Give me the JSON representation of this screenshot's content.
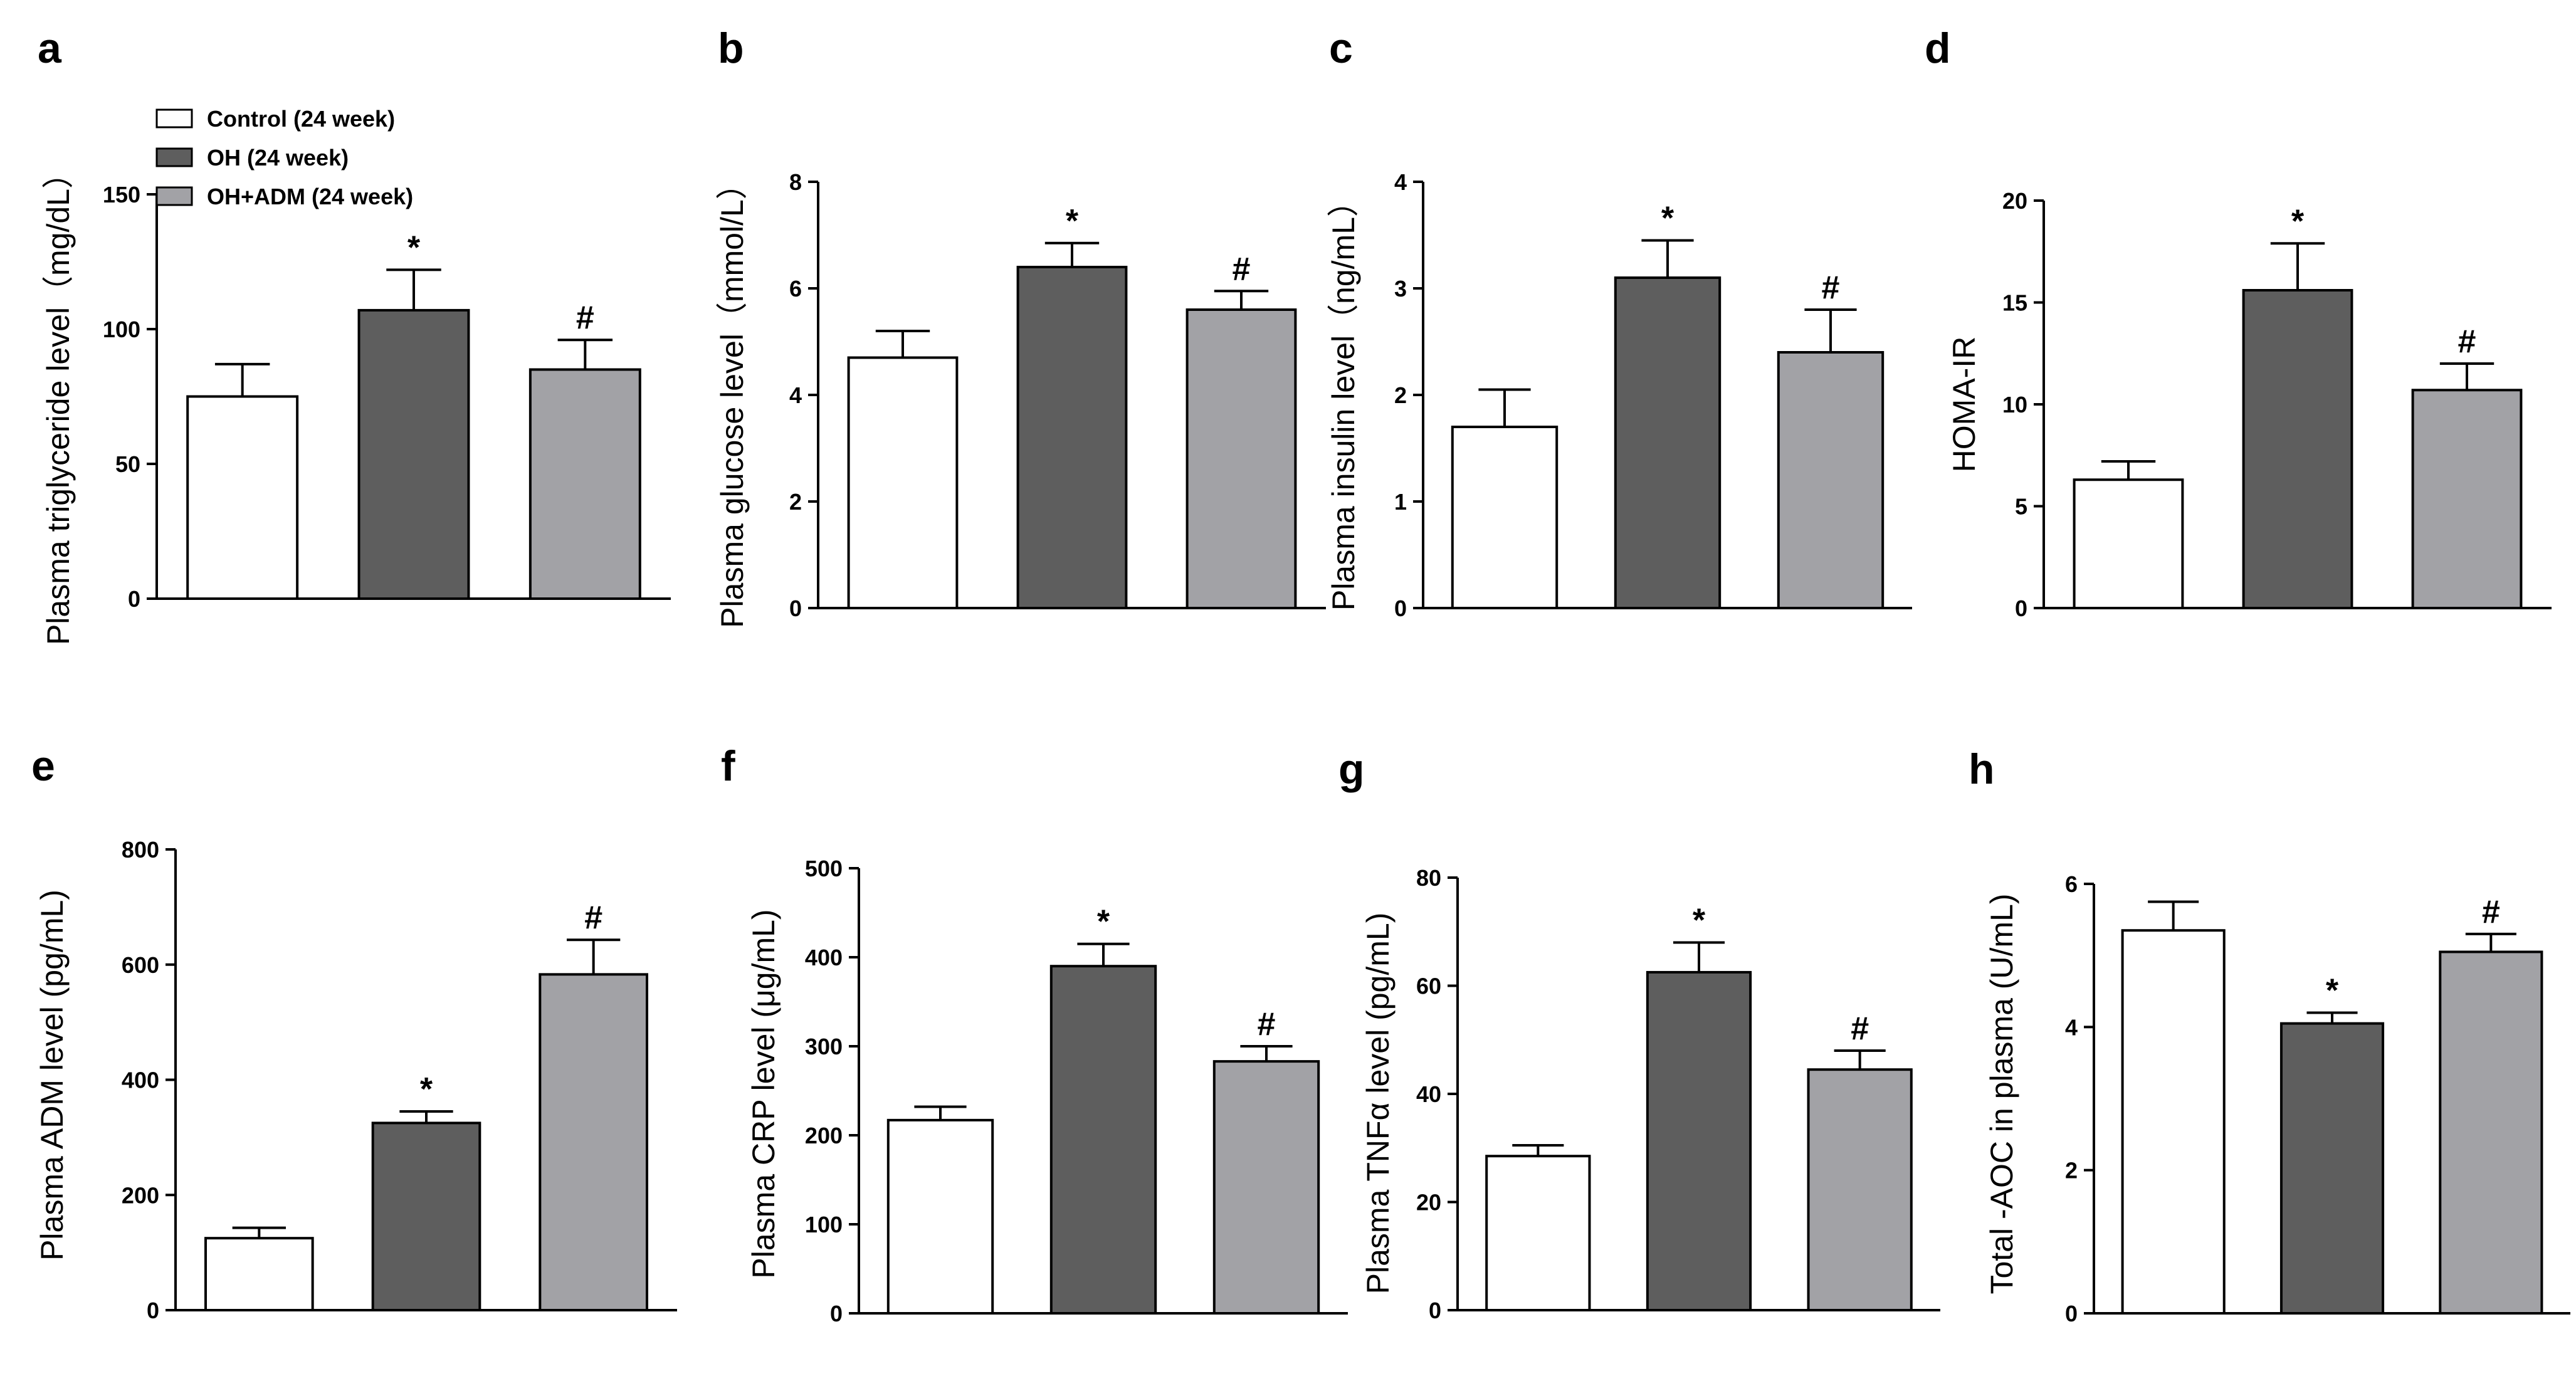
{
  "figure": {
    "group_colors": {
      "Control (24 week)": "#ffffff",
      "OH (24 week)": "#5e5e5e",
      "OH+ADM (24 week)": "#a2a2a6"
    }
  },
  "legend": {
    "items": [
      {
        "label": "Control (24 week)",
        "color": "#ffffff"
      },
      {
        "label": "OH (24 week)",
        "color": "#5e5e5e"
      },
      {
        "label": "OH+ADM (24 week)",
        "color": "#a2a2a6"
      }
    ]
  },
  "chart_data": [
    {
      "panel": "a",
      "type": "bar",
      "categories": [
        "Control (24 week)",
        "OH (24 week)",
        "OH+ADM (24 week)"
      ],
      "values": [
        75,
        107,
        85
      ],
      "errors": [
        12,
        15,
        11
      ],
      "annotations": [
        "",
        "*",
        "#"
      ],
      "ylabel": "Plasma  triglyceride level（mg/dL）",
      "ylim": [
        0,
        150
      ],
      "yticks": [
        "0",
        "50",
        "100",
        "150"
      ],
      "yticks_values": [
        0,
        50,
        100,
        150
      ]
    },
    {
      "panel": "b",
      "type": "bar",
      "categories": [
        "Control (24 week)",
        "OH (24 week)",
        "OH+ADM (24 week)"
      ],
      "values": [
        4.7,
        6.4,
        5.6
      ],
      "errors": [
        0.5,
        0.45,
        0.35
      ],
      "annotations": [
        "",
        "*",
        "#"
      ],
      "ylabel": "Plasma glucose level（mmol/L）",
      "ylim": [
        0,
        8
      ],
      "yticks": [
        "0",
        "2",
        "4",
        "6",
        "8"
      ],
      "yticks_values": [
        0,
        2,
        4,
        6,
        8
      ]
    },
    {
      "panel": "c",
      "type": "bar",
      "categories": [
        "Control (24 week)",
        "OH (24 week)",
        "OH+ADM (24 week)"
      ],
      "values": [
        1.7,
        3.1,
        2.4
      ],
      "errors": [
        0.35,
        0.35,
        0.4
      ],
      "annotations": [
        "",
        "*",
        "#"
      ],
      "ylabel": "Plasma insulin level（ng/mL）",
      "ylim": [
        0,
        4
      ],
      "yticks": [
        "0",
        "1",
        "2",
        "3",
        "4"
      ],
      "yticks_values": [
        0,
        1,
        2,
        3,
        4
      ]
    },
    {
      "panel": "d",
      "type": "bar",
      "categories": [
        "Control (24 week)",
        "OH (24 week)",
        "OH+ADM (24 week)"
      ],
      "values": [
        6.3,
        15.6,
        10.7
      ],
      "errors": [
        0.9,
        2.3,
        1.3
      ],
      "annotations": [
        "",
        "*",
        "#"
      ],
      "ylabel": "HOMA-IR",
      "ylim": [
        0,
        20
      ],
      "yticks": [
        "0",
        "5",
        "10",
        "15",
        "20"
      ],
      "yticks_values": [
        0,
        5,
        10,
        15,
        20
      ]
    },
    {
      "panel": "e",
      "type": "bar",
      "categories": [
        "Control (24 week)",
        "OH (24 week)",
        "OH+ADM (24 week)"
      ],
      "values": [
        125,
        325,
        583
      ],
      "errors": [
        18,
        20,
        60
      ],
      "annotations": [
        "",
        "*",
        "#"
      ],
      "ylabel": "Plasma ADM level (pg/mL)",
      "ylim": [
        0,
        800
      ],
      "yticks": [
        "0",
        "200",
        "400",
        "600",
        "800"
      ],
      "yticks_values": [
        0,
        200,
        400,
        600,
        800
      ]
    },
    {
      "panel": "f",
      "type": "bar",
      "categories": [
        "Control (24 week)",
        "OH (24 week)",
        "OH+ADM (24 week)"
      ],
      "values": [
        217,
        390,
        283
      ],
      "errors": [
        15,
        25,
        17
      ],
      "annotations": [
        "",
        "*",
        "#"
      ],
      "ylabel": "Plasma CRP level (μg/mL)",
      "ylim": [
        0,
        500
      ],
      "yticks": [
        "0",
        "100",
        "200",
        "300",
        "400",
        "500"
      ],
      "yticks_values": [
        0,
        100,
        200,
        300,
        400,
        500
      ]
    },
    {
      "panel": "g",
      "type": "bar",
      "categories": [
        "Control (24 week)",
        "OH (24 week)",
        "OH+ADM (24 week)"
      ],
      "values": [
        28.5,
        62.5,
        44.5
      ],
      "errors": [
        2,
        5.5,
        3.5
      ],
      "annotations": [
        "",
        "*",
        "#"
      ],
      "ylabel": "Plasma TNFα level (pg/mL)",
      "ylim": [
        0,
        80
      ],
      "yticks": [
        "0",
        "20",
        "40",
        "60",
        "80"
      ],
      "yticks_values": [
        0,
        20,
        40,
        60,
        80
      ]
    },
    {
      "panel": "h",
      "type": "bar",
      "categories": [
        "Control (24 week)",
        "OH (24 week)",
        "OH+ADM (24 week)"
      ],
      "values": [
        5.35,
        4.05,
        5.05
      ],
      "errors": [
        0.4,
        0.15,
        0.25
      ],
      "annotations": [
        "",
        "*",
        "#"
      ],
      "ylabel": "Total -AOC  in plasma (U/mL)",
      "ylim": [
        0,
        6
      ],
      "yticks": [
        "0",
        "2",
        "4",
        "6"
      ],
      "yticks_values": [
        0,
        2,
        4,
        6
      ]
    }
  ]
}
